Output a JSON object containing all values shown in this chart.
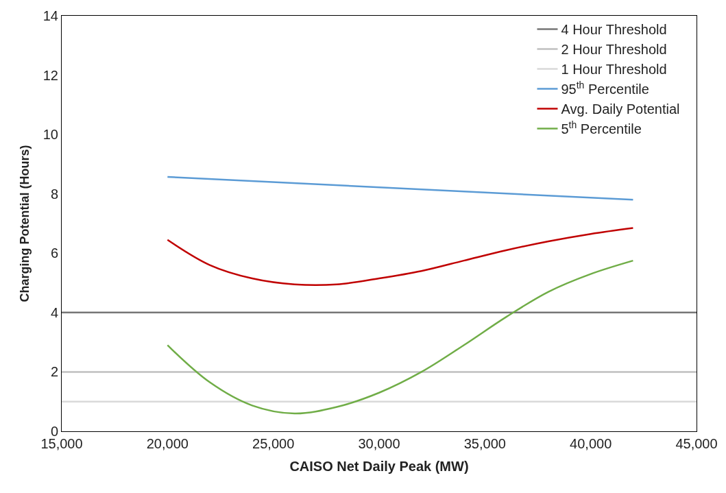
{
  "chart_data": {
    "type": "line",
    "xlabel": "CAISO Net Daily Peak (MW)",
    "ylabel": "Charging Potential (Hours)",
    "xlim": [
      15000,
      45000
    ],
    "xticks": [
      {
        "value": 15000,
        "label": "15,000"
      },
      {
        "value": 20000,
        "label": "20,000"
      },
      {
        "value": 25000,
        "label": "25,000"
      },
      {
        "value": 30000,
        "label": "30,000"
      },
      {
        "value": 35000,
        "label": "35,000"
      },
      {
        "value": 40000,
        "label": "40,000"
      },
      {
        "value": 45000,
        "label": "45,000"
      }
    ],
    "ylim": [
      0,
      14
    ],
    "yticks": [
      0,
      2,
      4,
      6,
      8,
      10,
      12,
      14
    ],
    "legend": "top right",
    "marker": "none",
    "line_style": "solid",
    "series": [
      {
        "name": "4 Hour Threshold",
        "color": "#767676",
        "x": [
          15000,
          45000
        ],
        "values": [
          4,
          4
        ]
      },
      {
        "name": "2 Hour Threshold",
        "color": "#bfbfbf",
        "x": [
          15000,
          45000
        ],
        "values": [
          2,
          2
        ]
      },
      {
        "name": "1 Hour Threshold",
        "color": "#d9d9d9",
        "x": [
          15000,
          45000
        ],
        "values": [
          1,
          1
        ]
      },
      {
        "name": "95$^{th}$ Percentile",
        "color": "#5b9bd5",
        "x": [
          20000,
          42000
        ],
        "values": [
          8.57,
          7.8
        ]
      },
      {
        "name": "Avg. Daily Potential",
        "color": "#c00000",
        "x": [
          20000,
          22000,
          24000,
          26000,
          28000,
          30000,
          32000,
          34000,
          36000,
          38000,
          40000,
          42000
        ],
        "values": [
          6.45,
          5.6,
          5.15,
          4.95,
          4.95,
          5.15,
          5.4,
          5.75,
          6.1,
          6.4,
          6.65,
          6.85
        ]
      },
      {
        "name": "5$^{th}$ Percentile",
        "color": "#70ad47",
        "x": [
          20000,
          22000,
          24000,
          26000,
          28000,
          30000,
          32000,
          34000,
          36000,
          38000,
          40000,
          42000
        ],
        "values": [
          2.9,
          1.65,
          0.87,
          0.6,
          0.82,
          1.3,
          2.0,
          2.9,
          3.85,
          4.7,
          5.3,
          5.75
        ]
      }
    ]
  }
}
